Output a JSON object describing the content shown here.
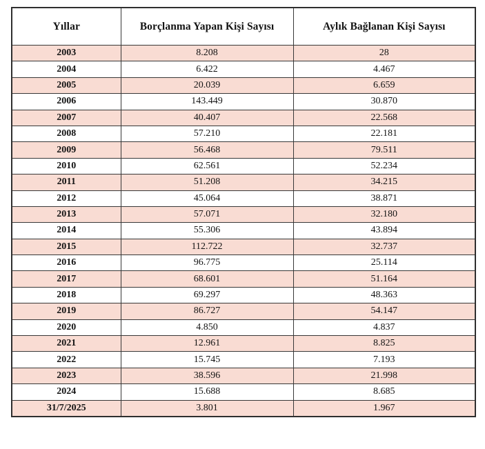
{
  "table": {
    "headers": [
      "Yıllar",
      "Borçlanma Yapan Kişi Sayısı",
      "Aylık Bağlanan Kişi Sayısı"
    ],
    "rows": [
      [
        "2003",
        "8.208",
        "28"
      ],
      [
        "2004",
        "6.422",
        "4.467"
      ],
      [
        "2005",
        "20.039",
        "6.659"
      ],
      [
        "2006",
        "143.449",
        "30.870"
      ],
      [
        "2007",
        "40.407",
        "22.568"
      ],
      [
        "2008",
        "57.210",
        "22.181"
      ],
      [
        "2009",
        "56.468",
        "79.511"
      ],
      [
        "2010",
        "62.561",
        "52.234"
      ],
      [
        "2011",
        "51.208",
        "34.215"
      ],
      [
        "2012",
        "45.064",
        "38.871"
      ],
      [
        "2013",
        "57.071",
        "32.180"
      ],
      [
        "2014",
        "55.306",
        "43.894"
      ],
      [
        "2015",
        "112.722",
        "32.737"
      ],
      [
        "2016",
        "96.775",
        "25.114"
      ],
      [
        "2017",
        "68.601",
        "51.164"
      ],
      [
        "2018",
        "69.297",
        "48.363"
      ],
      [
        "2019",
        "86.727",
        "54.147"
      ],
      [
        "2020",
        "4.850",
        "4.837"
      ],
      [
        "2021",
        "12.961",
        "8.825"
      ],
      [
        "2022",
        "15.745",
        "7.193"
      ],
      [
        "2023",
        "38.596",
        "21.998"
      ],
      [
        "2024",
        "15.688",
        "8.685"
      ],
      [
        "31/7/2025",
        "3.801",
        "1.967"
      ]
    ]
  },
  "colors": {
    "row_shaded": "#f9dcd3",
    "row_plain": "#ffffff",
    "border": "#373737",
    "text": "#141414"
  },
  "chart_data": {
    "type": "table",
    "title": "",
    "categories": [
      "2003",
      "2004",
      "2005",
      "2006",
      "2007",
      "2008",
      "2009",
      "2010",
      "2011",
      "2012",
      "2013",
      "2014",
      "2015",
      "2016",
      "2017",
      "2018",
      "2019",
      "2020",
      "2021",
      "2022",
      "2023",
      "2024",
      "31/7/2025"
    ],
    "series": [
      {
        "name": "Borçlanma Yapan Kişi Sayısı",
        "values": [
          8208,
          6422,
          20039,
          143449,
          40407,
          57210,
          56468,
          62561,
          51208,
          45064,
          57071,
          55306,
          112722,
          96775,
          68601,
          69297,
          86727,
          4850,
          12961,
          15745,
          38596,
          15688,
          3801
        ]
      },
      {
        "name": "Aylık Bağlanan Kişi Sayısı",
        "values": [
          28,
          4467,
          6659,
          30870,
          22568,
          22181,
          79511,
          52234,
          34215,
          38871,
          32180,
          43894,
          32737,
          25114,
          51164,
          48363,
          54147,
          4837,
          8825,
          7193,
          21998,
          8685,
          1967
        ]
      }
    ]
  }
}
